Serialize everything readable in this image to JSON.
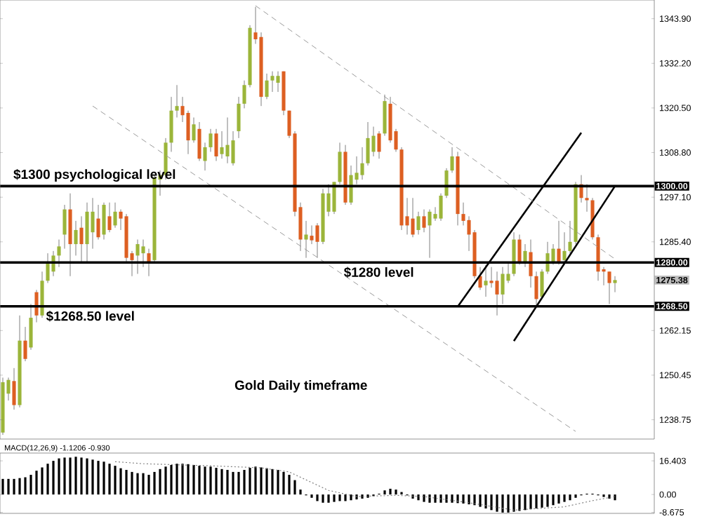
{
  "chart_data": [
    {
      "type": "candlestick",
      "categories": [
        null,
        null,
        null,
        null,
        null,
        null,
        null,
        null,
        null,
        null,
        null,
        null,
        null,
        null,
        null,
        null,
        null,
        null,
        null,
        null,
        null,
        null,
        null,
        null,
        null,
        null,
        null,
        null,
        null,
        null,
        null,
        null,
        null,
        null,
        null,
        null,
        null,
        null,
        null,
        null,
        null,
        null,
        null,
        null,
        null,
        null,
        null,
        null,
        null,
        null,
        null,
        null,
        null,
        null,
        null,
        null,
        null,
        null,
        null,
        null,
        null,
        null,
        null,
        null,
        null,
        null,
        null,
        null,
        null,
        null,
        null,
        null,
        null,
        null,
        null,
        null,
        null,
        null,
        null,
        null,
        null,
        null,
        null,
        null,
        null,
        null,
        null,
        null,
        null,
        null,
        null,
        null,
        null,
        null,
        null,
        null,
        null,
        null,
        null,
        null,
        null,
        null,
        null,
        null,
        null,
        null,
        null,
        null,
        null,
        null
      ],
      "colors": [
        "#9bb53a",
        "#9bb53a",
        "#dd5f22",
        "#9bb53a",
        "#dd5f22",
        "#9bb53a",
        "#dd5f22",
        "#9bb53a",
        "#9bb53a",
        "#9bb53a",
        "#9bb53a",
        "#9bb53a",
        "#dd5f22",
        "#9bb53a",
        "#dd5f22",
        "#9bb53a",
        "#9bb53a",
        "#dd5f22",
        "#9bb53a",
        "#dd5f22",
        "#9bb53a",
        "#dd5f22",
        "#dd5f22",
        "#dd5f22",
        "#9bb53a",
        "#9bb53a",
        "#dd5f22",
        "#9bb53a",
        "#9bb53a",
        "#9bb53a",
        "#9bb53a",
        "#9bb53a",
        "#dd5f22",
        "#dd5f22",
        "#9bb53a",
        "#dd5f22",
        "#9bb53a",
        "#9bb53a",
        "#dd5f22",
        "#9bb53a",
        "#9bb53a",
        "#9bb53a",
        "#9bb53a",
        "#9bb53a",
        "#9bb53a",
        "#dd5f22",
        "#dd5f22",
        "#9bb53a",
        "#9bb53a",
        "#9bb53a",
        "#dd5f22",
        "#dd5f22",
        "#dd5f22",
        "#dd5f22",
        "#9bb53a",
        "#dd5f22",
        "#dd5f22",
        "#9bb53a",
        "#9bb53a",
        "#9bb53a",
        "#9bb53a",
        "#dd5f22",
        "#9bb53a",
        "#9bb53a",
        "#9bb53a",
        "#9bb53a",
        "#9bb53a",
        "#dd5f22",
        "#9bb53a",
        "#dd5f22",
        "#dd5f22",
        "#dd5f22",
        "#dd5f22",
        "#dd5f22",
        "#9bb53a",
        "#dd5f22",
        "#9bb53a",
        "#9bb53a",
        "#9bb53a",
        "#9bb53a",
        "#9bb53a",
        "#dd5f22",
        "#dd5f22",
        "#dd5f22",
        "#dd5f22",
        "#dd5f22",
        "#9bb53a",
        "#dd5f22",
        "#dd5f22",
        "#9bb53a",
        "#9bb53a",
        "#9bb53a",
        "#dd5f22",
        "#9bb53a",
        "#dd5f22",
        "#dd5f22",
        "#9bb53a",
        "#9bb53a",
        "#9bb53a",
        "#dd5f22",
        "#9bb53a",
        "#9bb53a",
        "#9bb53a",
        "#dd5f22",
        "#dd5f22",
        "#dd5f22",
        "#dd5f22",
        "#dd5f22",
        "#dd5f22",
        "#9bb53a"
      ],
      "ohlc": [
        [
          1235.4,
          1249.8,
          1234.8,
          1248.6
        ],
        [
          1245.6,
          1249.8,
          1243.8,
          1249.2
        ],
        [
          1248.9,
          1252.3,
          1241.4,
          1242.6
        ],
        [
          1242.6,
          1266.1,
          1242.0,
          1259.5
        ],
        [
          1259.5,
          1263.1,
          1254.1,
          1254.7
        ],
        [
          1257.7,
          1269.1,
          1257.1,
          1265.5
        ],
        [
          1272.2,
          1272.8,
          1264.3,
          1266.1
        ],
        [
          1266.1,
          1277.6,
          1265.5,
          1275.2
        ],
        [
          1275.2,
          1282.4,
          1274.6,
          1280.0
        ],
        [
          1277.6,
          1283.0,
          1276.4,
          1281.8
        ],
        [
          1281.8,
          1286.0,
          1278.8,
          1284.2
        ],
        [
          1287.3,
          1295.1,
          1283.6,
          1293.9
        ],
        [
          1293.9,
          1298.1,
          1276.4,
          1284.8
        ],
        [
          1284.8,
          1290.9,
          1281.8,
          1288.5
        ],
        [
          1289.1,
          1292.1,
          1280.0,
          1284.8
        ],
        [
          1284.8,
          1295.7,
          1280.0,
          1293.3
        ],
        [
          1287.9,
          1296.9,
          1283.6,
          1293.3
        ],
        [
          1291.5,
          1295.1,
          1286.0,
          1286.6
        ],
        [
          1287.3,
          1295.7,
          1286.0,
          1295.1
        ],
        [
          1292.1,
          1295.7,
          1287.9,
          1288.5
        ],
        [
          1289.7,
          1295.7,
          1289.1,
          1293.3
        ],
        [
          1293.3,
          1293.9,
          1288.5,
          1291.5
        ],
        [
          1292.1,
          1292.7,
          1280.0,
          1281.2
        ],
        [
          1282.4,
          1283.0,
          1276.4,
          1280.6
        ],
        [
          1281.8,
          1286.0,
          1277.0,
          1284.8
        ],
        [
          1282.4,
          1286.0,
          1278.8,
          1284.2
        ],
        [
          1282.4,
          1283.6,
          1276.4,
          1280.0
        ],
        [
          1280.6,
          1302.9,
          1280.0,
          1302.3
        ],
        [
          1301.7,
          1304.1,
          1297.5,
          1302.9
        ],
        [
          1302.9,
          1312.6,
          1301.7,
          1311.4
        ],
        [
          1311.4,
          1323.4,
          1309.0,
          1319.8
        ],
        [
          1319.8,
          1326.5,
          1318.0,
          1321.0
        ],
        [
          1321.0,
          1323.4,
          1316.8,
          1318.6
        ],
        [
          1319.2,
          1319.8,
          1308.4,
          1312.0
        ],
        [
          1312.0,
          1318.0,
          1311.4,
          1316.2
        ],
        [
          1315.0,
          1316.8,
          1306.6,
          1307.2
        ],
        [
          1306.6,
          1311.4,
          1304.1,
          1310.2
        ],
        [
          1310.2,
          1315.0,
          1309.0,
          1313.8
        ],
        [
          1313.8,
          1315.0,
          1306.6,
          1307.8
        ],
        [
          1308.4,
          1314.4,
          1307.2,
          1310.2
        ],
        [
          1307.8,
          1318.0,
          1306.0,
          1310.8
        ],
        [
          1306.0,
          1314.4,
          1305.4,
          1312.0
        ],
        [
          1314.4,
          1323.4,
          1312.6,
          1321.6
        ],
        [
          1321.6,
          1327.7,
          1320.4,
          1326.5
        ],
        [
          1326.5,
          1342.2,
          1325.9,
          1341.5
        ],
        [
          1340.3,
          1347.0,
          1337.3,
          1338.5
        ],
        [
          1339.1,
          1340.3,
          1321.0,
          1323.4
        ],
        [
          1323.4,
          1329.5,
          1322.8,
          1327.7
        ],
        [
          1327.7,
          1330.1,
          1324.7,
          1328.9
        ],
        [
          1327.1,
          1330.1,
          1324.7,
          1328.9
        ],
        [
          1330.1,
          1330.1,
          1318.6,
          1319.8
        ],
        [
          1319.8,
          1319.8,
          1312.6,
          1313.2
        ],
        [
          1313.8,
          1314.4,
          1292.1,
          1293.3
        ],
        [
          1294.5,
          1295.7,
          1283.0,
          1286.0
        ],
        [
          1286.0,
          1290.9,
          1281.2,
          1287.3
        ],
        [
          1287.0,
          1289.7,
          1284.8,
          1285.8
        ],
        [
          1289.7,
          1290.3,
          1281.2,
          1285.4
        ],
        [
          1285.4,
          1299.3,
          1284.8,
          1298.1
        ],
        [
          1293.3,
          1300.5,
          1292.1,
          1298.1
        ],
        [
          1293.3,
          1301.1,
          1292.7,
          1301.1
        ],
        [
          1301.1,
          1311.4,
          1300.5,
          1309.0
        ],
        [
          1309.0,
          1310.8,
          1295.1,
          1295.7
        ],
        [
          1295.7,
          1305.4,
          1295.1,
          1302.9
        ],
        [
          1301.7,
          1307.8,
          1300.5,
          1303.5
        ],
        [
          1302.9,
          1310.2,
          1301.7,
          1306.0
        ],
        [
          1306.0,
          1316.8,
          1305.4,
          1312.6
        ],
        [
          1309.0,
          1315.6,
          1307.8,
          1313.2
        ],
        [
          1313.8,
          1314.4,
          1307.2,
          1309.0
        ],
        [
          1313.8,
          1324.0,
          1313.2,
          1322.3
        ],
        [
          1321.6,
          1323.4,
          1311.4,
          1312.0
        ],
        [
          1314.4,
          1315.0,
          1309.0,
          1309.6
        ],
        [
          1309.6,
          1310.2,
          1288.5,
          1289.7
        ],
        [
          1292.1,
          1296.9,
          1287.3,
          1289.7
        ],
        [
          1291.5,
          1296.9,
          1286.6,
          1287.3
        ],
        [
          1288.5,
          1293.3,
          1287.3,
          1292.1
        ],
        [
          1292.1,
          1293.9,
          1287.9,
          1289.1
        ],
        [
          1289.7,
          1293.9,
          1281.2,
          1293.3
        ],
        [
          1291.5,
          1294.5,
          1290.9,
          1292.7
        ],
        [
          1291.5,
          1298.1,
          1290.9,
          1297.5
        ],
        [
          1297.5,
          1304.7,
          1296.9,
          1304.1
        ],
        [
          1304.1,
          1310.2,
          1303.5,
          1307.8
        ],
        [
          1307.8,
          1309.0,
          1289.7,
          1292.7
        ],
        [
          1292.7,
          1295.7,
          1289.7,
          1290.9
        ],
        [
          1291.1,
          1292.1,
          1283.0,
          1287.3
        ],
        [
          1287.9,
          1288.5,
          1275.8,
          1276.4
        ],
        [
          1276.4,
          1278.8,
          1272.8,
          1273.4
        ],
        [
          1274.0,
          1279.4,
          1271.0,
          1275.2
        ],
        [
          1275.2,
          1278.8,
          1273.4,
          1274.6
        ],
        [
          1275.2,
          1277.6,
          1266.1,
          1271.6
        ],
        [
          1271.6,
          1278.8,
          1269.1,
          1277.0
        ],
        [
          1275.2,
          1280.0,
          1274.6,
          1277.0
        ],
        [
          1277.0,
          1287.9,
          1276.4,
          1286.0
        ],
        [
          1286.0,
          1287.3,
          1279.4,
          1280.0
        ],
        [
          1280.0,
          1284.8,
          1278.8,
          1283.0
        ],
        [
          1282.7,
          1286.0,
          1273.4,
          1276.4
        ],
        [
          1276.4,
          1277.6,
          1268.5,
          1270.4
        ],
        [
          1271.0,
          1278.2,
          1270.4,
          1277.6
        ],
        [
          1277.6,
          1285.4,
          1277.0,
          1282.4
        ],
        [
          1280.0,
          1284.8,
          1279.4,
          1283.6
        ],
        [
          1283.6,
          1290.9,
          1279.4,
          1280.0
        ],
        [
          1280.6,
          1287.9,
          1280.0,
          1283.0
        ],
        [
          1283.0,
          1290.9,
          1282.4,
          1285.4
        ],
        [
          1285.4,
          1301.1,
          1284.8,
          1300.5
        ],
        [
          1300.5,
          1302.9,
          1295.7,
          1296.9
        ],
        [
          1296.9,
          1300.5,
          1293.3,
          1296.3
        ],
        [
          1296.3,
          1296.9,
          1286.0,
          1286.6
        ],
        [
          1286.6,
          1287.3,
          1275.2,
          1277.6
        ],
        [
          1278.2,
          1278.8,
          1274.0,
          1277.6
        ],
        [
          1277.6,
          1277.6,
          1269.1,
          1274.6
        ],
        [
          1274.6,
          1276.4,
          1272.2,
          1275.38
        ]
      ],
      "series": [
        {
          "type": "line",
          "color": "#000000",
          "line_style": "solid",
          "values": [
            null,
            null,
            null,
            null,
            null,
            null,
            null,
            null,
            null,
            null,
            null,
            null,
            null,
            null,
            null,
            null,
            null,
            null,
            null,
            null,
            null,
            null,
            null,
            null,
            null,
            null,
            null,
            null,
            null,
            null,
            null,
            null,
            null,
            null,
            null,
            null,
            null,
            null,
            null,
            null,
            null,
            null,
            null,
            null,
            null,
            null,
            null,
            null,
            null,
            null,
            null,
            null,
            null,
            null,
            null,
            null,
            null,
            null,
            null,
            null,
            null,
            null,
            null,
            null,
            null,
            null,
            null,
            null,
            null,
            null,
            null,
            null,
            null,
            null,
            null,
            null,
            null,
            null,
            null,
            null,
            null,
            1268.4,
            null,
            null,
            null,
            null,
            null,
            null,
            null,
            null,
            null,
            null,
            null,
            null,
            null,
            null,
            null,
            null,
            null,
            null,
            null,
            null,
            null,
            1314.0,
            null,
            null,
            null,
            null,
            null,
            null
          ]
        },
        {
          "type": "line",
          "color": "#000000",
          "line_style": "solid",
          "values": [
            null,
            null,
            null,
            null,
            null,
            null,
            null,
            null,
            null,
            null,
            null,
            null,
            null,
            null,
            null,
            null,
            null,
            null,
            null,
            null,
            null,
            null,
            null,
            null,
            null,
            null,
            null,
            null,
            null,
            null,
            null,
            null,
            null,
            null,
            null,
            null,
            null,
            null,
            null,
            null,
            null,
            null,
            null,
            null,
            null,
            null,
            null,
            null,
            null,
            null,
            null,
            null,
            null,
            null,
            null,
            null,
            null,
            null,
            null,
            null,
            null,
            null,
            null,
            null,
            null,
            null,
            null,
            null,
            null,
            null,
            null,
            null,
            null,
            null,
            null,
            null,
            null,
            null,
            null,
            null,
            null,
            null,
            null,
            null,
            null,
            null,
            null,
            null,
            null,
            null,
            null,
            1259.4,
            null,
            null,
            null,
            null,
            null,
            null,
            null,
            null,
            null,
            null,
            null,
            null,
            null,
            null,
            null,
            null,
            null,
            1300.0
          ]
        },
        {
          "type": "line",
          "color": "#9a9a9a",
          "line_style": "dashed",
          "values": [
            null,
            null,
            null,
            null,
            null,
            null,
            null,
            null,
            null,
            null,
            null,
            null,
            null,
            null,
            null,
            null,
            null,
            null,
            null,
            null,
            null,
            null,
            null,
            null,
            null,
            null,
            null,
            null,
            null,
            null,
            null,
            null,
            null,
            null,
            null,
            null,
            null,
            null,
            null,
            null,
            null,
            null,
            null,
            null,
            null,
            1347.3,
            null,
            null,
            null,
            null,
            null,
            null,
            null,
            null,
            null,
            null,
            null,
            null,
            null,
            null,
            null,
            null,
            null,
            null,
            null,
            null,
            null,
            null,
            null,
            null,
            null,
            null,
            null,
            null,
            null,
            null,
            null,
            null,
            null,
            null,
            null,
            null,
            null,
            null,
            null,
            null,
            null,
            null,
            null,
            null,
            null,
            null,
            null,
            null,
            null,
            null,
            null,
            null,
            null,
            null,
            null,
            null,
            null,
            null,
            null,
            null,
            null,
            null,
            null,
            1280.9
          ]
        },
        {
          "type": "line",
          "color": "#9a9a9a",
          "line_style": "dashed",
          "values": [
            null,
            null,
            null,
            null,
            null,
            null,
            null,
            null,
            null,
            null,
            null,
            null,
            null,
            null,
            null,
            null,
            1321.0,
            null,
            null,
            null,
            null,
            null,
            null,
            null,
            null,
            null,
            null,
            null,
            null,
            null,
            null,
            null,
            null,
            null,
            null,
            null,
            null,
            null,
            null,
            null,
            null,
            null,
            null,
            null,
            null,
            null,
            null,
            null,
            null,
            null,
            null,
            null,
            null,
            null,
            null,
            null,
            null,
            null,
            null,
            null,
            null,
            null,
            null,
            null,
            null,
            null,
            null,
            null,
            null,
            null,
            null,
            null,
            null,
            null,
            null,
            null,
            null,
            null,
            null,
            null,
            null,
            null,
            null,
            null,
            null,
            null,
            null,
            null,
            null,
            null,
            null,
            null,
            null,
            null,
            null,
            null,
            null,
            null,
            null,
            null,
            null,
            null,
            1235.7,
            null,
            null,
            null,
            null,
            null,
            null,
            null
          ]
        }
      ],
      "ylim": [
        1233.7,
        1348.8
      ],
      "yticks": [
        {
          "value": 1343.9,
          "label": "1343.90"
        },
        {
          "value": 1332.2,
          "label": "1332.20"
        },
        {
          "value": 1320.5,
          "label": "1320.50"
        },
        {
          "value": 1308.8,
          "label": "1308.80"
        },
        {
          "value": 1297.1,
          "label": "1297.10"
        },
        {
          "value": 1285.4,
          "label": "1285.40"
        },
        {
          "value": 1262.15,
          "label": "1262.15"
        },
        {
          "value": 1250.45,
          "label": "1250.45"
        },
        {
          "value": 1238.75,
          "label": "1238.75"
        }
      ],
      "ref_lines": [
        {
          "axis": "y",
          "value": 1300,
          "label": "1300.00",
          "color": "#000000"
        },
        {
          "axis": "y",
          "value": 1280,
          "label": "1280.00",
          "color": "#000000"
        },
        {
          "axis": "y",
          "value": 1268.5,
          "label": "1268.50",
          "color": "#000000"
        }
      ],
      "annotations": [
        {
          "text": "$1300 psychological level",
          "y": 1300
        },
        {
          "text": "$1280 level",
          "y": 1280
        },
        {
          "text": "$1268.50 level",
          "y": 1268.5
        },
        "Gold Daily timeframe",
        "1275.38"
      ]
    },
    {
      "type": "bar",
      "title": "MACD(12,26,9) -1.1206 -0.930",
      "categories": [
        null,
        null,
        null,
        null,
        null,
        null,
        null,
        null,
        null,
        null,
        null,
        null,
        null,
        null,
        null,
        null,
        null,
        null,
        null,
        null,
        null,
        null,
        null,
        null,
        null,
        null,
        null,
        null,
        null,
        null,
        null,
        null,
        null,
        null,
        null,
        null,
        null,
        null,
        null,
        null,
        null,
        null,
        null,
        null,
        null,
        null,
        null,
        null,
        null,
        null,
        null,
        null,
        null,
        null,
        null,
        null,
        null,
        null,
        null,
        null,
        null,
        null,
        null,
        null,
        null,
        null,
        null,
        null,
        null,
        null,
        null,
        null,
        null,
        null,
        null,
        null,
        null,
        null,
        null,
        null,
        null,
        null,
        null,
        null,
        null,
        null,
        null,
        null,
        null,
        null,
        null,
        null,
        null,
        null,
        null,
        null,
        null,
        null,
        null,
        null,
        null,
        null,
        null,
        null,
        null,
        null,
        null,
        null,
        null,
        null
      ],
      "series": [
        {
          "color": "#000000",
          "values": [
            7.6,
            7.6,
            7.6,
            8,
            8.4,
            9.6,
            11.6,
            13.2,
            15,
            16.4,
            17.6,
            18,
            18,
            18.4,
            18,
            17.6,
            17,
            16.4,
            16,
            15,
            14,
            12.8,
            12,
            11,
            10.4,
            10.4,
            9.6,
            11,
            12.4,
            13.6,
            14.4,
            15,
            15,
            14.8,
            14.4,
            14,
            13.6,
            13.6,
            13,
            12.4,
            12,
            11,
            11,
            12,
            13,
            13.6,
            13.2,
            12.8,
            12.4,
            12,
            11,
            9.6,
            7,
            2.4,
            -0.4,
            -1.6,
            -3.2,
            -4,
            -4,
            -3.6,
            -3.2,
            -3.2,
            -2.8,
            -2.4,
            -2,
            -1.6,
            -0.8,
            0.4,
            2,
            2.8,
            2.4,
            1.2,
            -0.4,
            -2,
            -2.8,
            -3.6,
            -4,
            -4,
            -4,
            -4,
            -4,
            -4.2,
            -4.4,
            -4.8,
            -5.2,
            -6,
            -6.8,
            -7.6,
            -8.4,
            -8.8,
            -8.8,
            -8.4,
            -8,
            -7.6,
            -7.2,
            -6.8,
            -6.4,
            -6,
            -5.2,
            -4.4,
            -3.6,
            -2.8,
            -1.6,
            -0.4,
            0.4,
            0.4,
            -0.4,
            -1.2,
            -2,
            -2.8
          ]
        },
        {
          "type": "line",
          "color": "#808080",
          "line_style": "dotted",
          "values": [
            null,
            null,
            null,
            null,
            null,
            null,
            null,
            null,
            null,
            null,
            null,
            null,
            null,
            null,
            null,
            null,
            null,
            null,
            null,
            null,
            16,
            null,
            null,
            null,
            null,
            15,
            null,
            null,
            null,
            null,
            null,
            null,
            null,
            null,
            null,
            null,
            null,
            14,
            null,
            null,
            null,
            null,
            null,
            null,
            null,
            null,
            13,
            null,
            null,
            null,
            null,
            11,
            null,
            null,
            null,
            null,
            null,
            null,
            2,
            null,
            null,
            null,
            null,
            -1,
            null,
            null,
            null,
            null,
            null,
            null,
            -0.4,
            null,
            null,
            null,
            null,
            -1,
            null,
            null,
            null,
            null,
            null,
            null,
            null,
            -4,
            null,
            null,
            null,
            null,
            null,
            null,
            null,
            -7.6,
            null,
            null,
            null,
            null,
            null,
            null,
            null,
            null,
            -6,
            null,
            null,
            null,
            null,
            -3,
            null,
            null,
            null,
            -1
          ]
        }
      ],
      "ylim": [
        -9.2,
        20.2
      ],
      "yticks": [
        16.403,
        {
          "value": 0,
          "label": "0.00"
        },
        -8.675
      ]
    }
  ]
}
